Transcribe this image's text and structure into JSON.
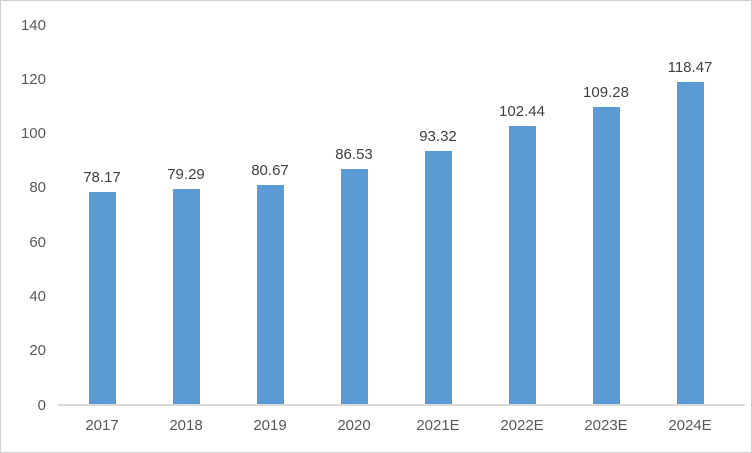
{
  "chart_data": {
    "type": "bar",
    "categories": [
      "2017",
      "2018",
      "2019",
      "2020",
      "2021E",
      "2022E",
      "2023E",
      "2024E"
    ],
    "values": [
      78.17,
      79.29,
      80.67,
      86.53,
      93.32,
      102.44,
      109.28,
      118.47
    ],
    "data_labels": [
      "78.17",
      "79.29",
      "80.67",
      "86.53",
      "93.32",
      "102.44",
      "109.28",
      "118.47"
    ],
    "title": "",
    "xlabel": "",
    "ylabel": "",
    "ylim": [
      0,
      140
    ],
    "y_tick_step": 20,
    "y_tick_labels": [
      "0",
      "20",
      "40",
      "60",
      "80",
      "100",
      "120",
      "140"
    ],
    "grid": "off",
    "legend": "none",
    "bar_color": "#5b9bd5",
    "axis_line_color": "#d9d9d9",
    "tick_label_color": "#595959",
    "data_label_color": "#404040",
    "frame_border_color": "#cfcfcf"
  }
}
